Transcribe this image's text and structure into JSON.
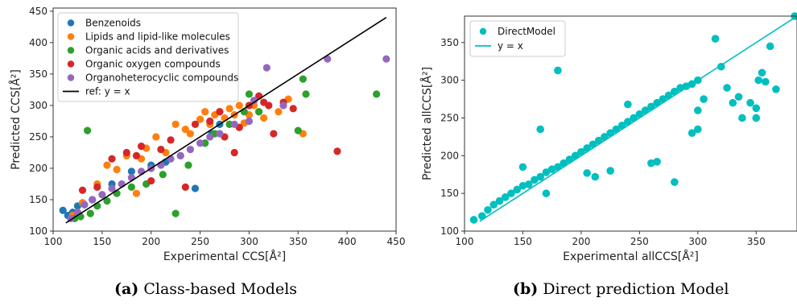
{
  "captions": [
    {
      "letter": "(a)",
      "text": "Class-based Models"
    },
    {
      "letter": "(b)",
      "text": "Direct prediction Model"
    }
  ],
  "chart_data": [
    {
      "type": "scatter",
      "xlabel": "Experimental CCS[Å²]",
      "ylabel": "Predicted CCS[Å²]",
      "xlim": [
        100,
        450
      ],
      "ylim": [
        100,
        455
      ],
      "xticks": [
        100,
        150,
        200,
        250,
        300,
        350,
        400,
        450
      ],
      "yticks": [
        100,
        150,
        200,
        250,
        300,
        350,
        400,
        450
      ],
      "grid": false,
      "legend_position": "top-left",
      "series": [
        {
          "name": "Benzenoids",
          "color": "#1f77b4",
          "points": [
            [
              110,
              133
            ],
            [
              115,
              125
            ],
            [
              120,
              130
            ],
            [
              125,
              140
            ],
            [
              130,
              145
            ],
            [
              140,
              150
            ],
            [
              160,
              175
            ],
            [
              180,
              195
            ],
            [
              200,
              205
            ],
            [
              215,
              210
            ],
            [
              230,
              220
            ],
            [
              245,
              168
            ],
            [
              255,
              240
            ],
            [
              262,
              255
            ],
            [
              270,
              270
            ]
          ]
        },
        {
          "name": "Lipids and lipid-like molecules",
          "color": "#ff7f0e",
          "points": [
            [
              120,
              125
            ],
            [
              130,
              145
            ],
            [
              145,
              175
            ],
            [
              155,
              205
            ],
            [
              165,
              198
            ],
            [
              175,
              220
            ],
            [
              185,
              160
            ],
            [
              190,
              215
            ],
            [
              195,
              232
            ],
            [
              205,
              250
            ],
            [
              215,
              225
            ],
            [
              225,
              270
            ],
            [
              235,
              262
            ],
            [
              240,
              255
            ],
            [
              250,
              278
            ],
            [
              255,
              290
            ],
            [
              260,
              270
            ],
            [
              265,
              285
            ],
            [
              270,
              290
            ],
            [
              275,
              280
            ],
            [
              280,
              295
            ],
            [
              285,
              285
            ],
            [
              290,
              300
            ],
            [
              295,
              272
            ],
            [
              300,
              285
            ],
            [
              305,
              300
            ],
            [
              310,
              290
            ],
            [
              315,
              280
            ],
            [
              320,
              300
            ],
            [
              330,
              290
            ],
            [
              340,
              310
            ],
            [
              355,
              255
            ]
          ]
        },
        {
          "name": "Organic acids and derivatives",
          "color": "#2ca02c",
          "points": [
            [
              122,
              120
            ],
            [
              128,
              123
            ],
            [
              135,
              260
            ],
            [
              138,
              128
            ],
            [
              145,
              140
            ],
            [
              155,
              148
            ],
            [
              165,
              160
            ],
            [
              180,
              170
            ],
            [
              195,
              175
            ],
            [
              212,
              190
            ],
            [
              225,
              128
            ],
            [
              238,
              205
            ],
            [
              255,
              240
            ],
            [
              265,
              255
            ],
            [
              280,
              270
            ],
            [
              295,
              290
            ],
            [
              300,
              318
            ],
            [
              310,
              290
            ],
            [
              350,
              260
            ],
            [
              355,
              342
            ],
            [
              358,
              318
            ],
            [
              430,
              318
            ]
          ]
        },
        {
          "name": "Organic oxygen compounds",
          "color": "#d62728",
          "points": [
            [
              130,
              165
            ],
            [
              145,
              170
            ],
            [
              160,
              215
            ],
            [
              175,
              225
            ],
            [
              185,
              220
            ],
            [
              190,
              235
            ],
            [
              200,
              180
            ],
            [
              210,
              230
            ],
            [
              220,
              245
            ],
            [
              235,
              170
            ],
            [
              245,
              270
            ],
            [
              260,
              275
            ],
            [
              270,
              290
            ],
            [
              275,
              250
            ],
            [
              285,
              225
            ],
            [
              290,
              265
            ],
            [
              300,
              300
            ],
            [
              310,
              315
            ],
            [
              315,
              305
            ],
            [
              320,
              300
            ],
            [
              325,
              255
            ],
            [
              335,
              305
            ],
            [
              345,
              295
            ],
            [
              390,
              227
            ]
          ]
        },
        {
          "name": "Organoheterocyclic compounds",
          "color": "#9467bd",
          "points": [
            [
              118,
              120
            ],
            [
              125,
              130
            ],
            [
              132,
              142
            ],
            [
              140,
              150
            ],
            [
              150,
              158
            ],
            [
              160,
              168
            ],
            [
              170,
              175
            ],
            [
              180,
              185
            ],
            [
              190,
              195
            ],
            [
              200,
              200
            ],
            [
              210,
              205
            ],
            [
              220,
              215
            ],
            [
              230,
              220
            ],
            [
              240,
              230
            ],
            [
              250,
              240
            ],
            [
              260,
              250
            ],
            [
              270,
              255
            ],
            [
              285,
              270
            ],
            [
              300,
              275
            ],
            [
              305,
              308
            ],
            [
              318,
              360
            ],
            [
              335,
              300
            ],
            [
              380,
              374
            ],
            [
              440,
              374
            ]
          ]
        }
      ],
      "reference_line": {
        "name": "ref: y = x",
        "color": "#000000",
        "x": [
          113,
          440
        ],
        "y": [
          113,
          440
        ]
      }
    },
    {
      "type": "scatter",
      "xlabel": "Experimental allCCS[Å²]",
      "ylabel": "Predicted allCCS[Å²]",
      "xlim": [
        100,
        385
      ],
      "ylim": [
        100,
        385
      ],
      "xticks": [
        100,
        150,
        200,
        250,
        300,
        350
      ],
      "yticks": [
        100,
        150,
        200,
        250,
        300,
        350
      ],
      "grid": false,
      "legend_position": "top-left",
      "series": [
        {
          "name": "DirectModel",
          "color": "#00bfbf",
          "points": [
            [
              108,
              115
            ],
            [
              115,
              120
            ],
            [
              120,
              128
            ],
            [
              125,
              135
            ],
            [
              130,
              140
            ],
            [
              135,
              145
            ],
            [
              140,
              150
            ],
            [
              145,
              155
            ],
            [
              150,
              160
            ],
            [
              155,
              162
            ],
            [
              160,
              168
            ],
            [
              165,
              172
            ],
            [
              170,
              178
            ],
            [
              175,
              182
            ],
            [
              180,
              185
            ],
            [
              185,
              190
            ],
            [
              190,
              195
            ],
            [
              195,
              200
            ],
            [
              200,
              205
            ],
            [
              205,
              210
            ],
            [
              210,
              215
            ],
            [
              215,
              220
            ],
            [
              220,
              225
            ],
            [
              225,
              230
            ],
            [
              230,
              235
            ],
            [
              235,
              240
            ],
            [
              240,
              245
            ],
            [
              245,
              250
            ],
            [
              250,
              255
            ],
            [
              255,
              260
            ],
            [
              260,
              265
            ],
            [
              265,
              270
            ],
            [
              270,
              275
            ],
            [
              275,
              280
            ],
            [
              280,
              285
            ],
            [
              285,
              290
            ],
            [
              290,
              292
            ],
            [
              295,
              295
            ],
            [
              300,
              300
            ],
            [
              180,
              313
            ],
            [
              165,
              235
            ],
            [
              150,
              185
            ],
            [
              170,
              150
            ],
            [
              205,
              177
            ],
            [
              212,
              172
            ],
            [
              225,
              180
            ],
            [
              240,
              268
            ],
            [
              260,
              190
            ],
            [
              265,
              192
            ],
            [
              280,
              165
            ],
            [
              300,
              260
            ],
            [
              305,
              275
            ],
            [
              315,
              355
            ],
            [
              320,
              318
            ],
            [
              325,
              290
            ],
            [
              330,
              270
            ],
            [
              335,
              278
            ],
            [
              338,
              250
            ],
            [
              352,
              300
            ],
            [
              355,
              310
            ],
            [
              358,
              298
            ],
            [
              350,
              263
            ],
            [
              345,
              270
            ],
            [
              362,
              345
            ],
            [
              367,
              288
            ],
            [
              350,
              250
            ],
            [
              383,
              385
            ],
            [
              295,
              230
            ],
            [
              300,
              235
            ]
          ]
        }
      ],
      "reference_line": {
        "name": "y = x",
        "color": "#00bfbf",
        "x": [
          113,
          385
        ],
        "y": [
          113,
          385
        ]
      }
    }
  ]
}
